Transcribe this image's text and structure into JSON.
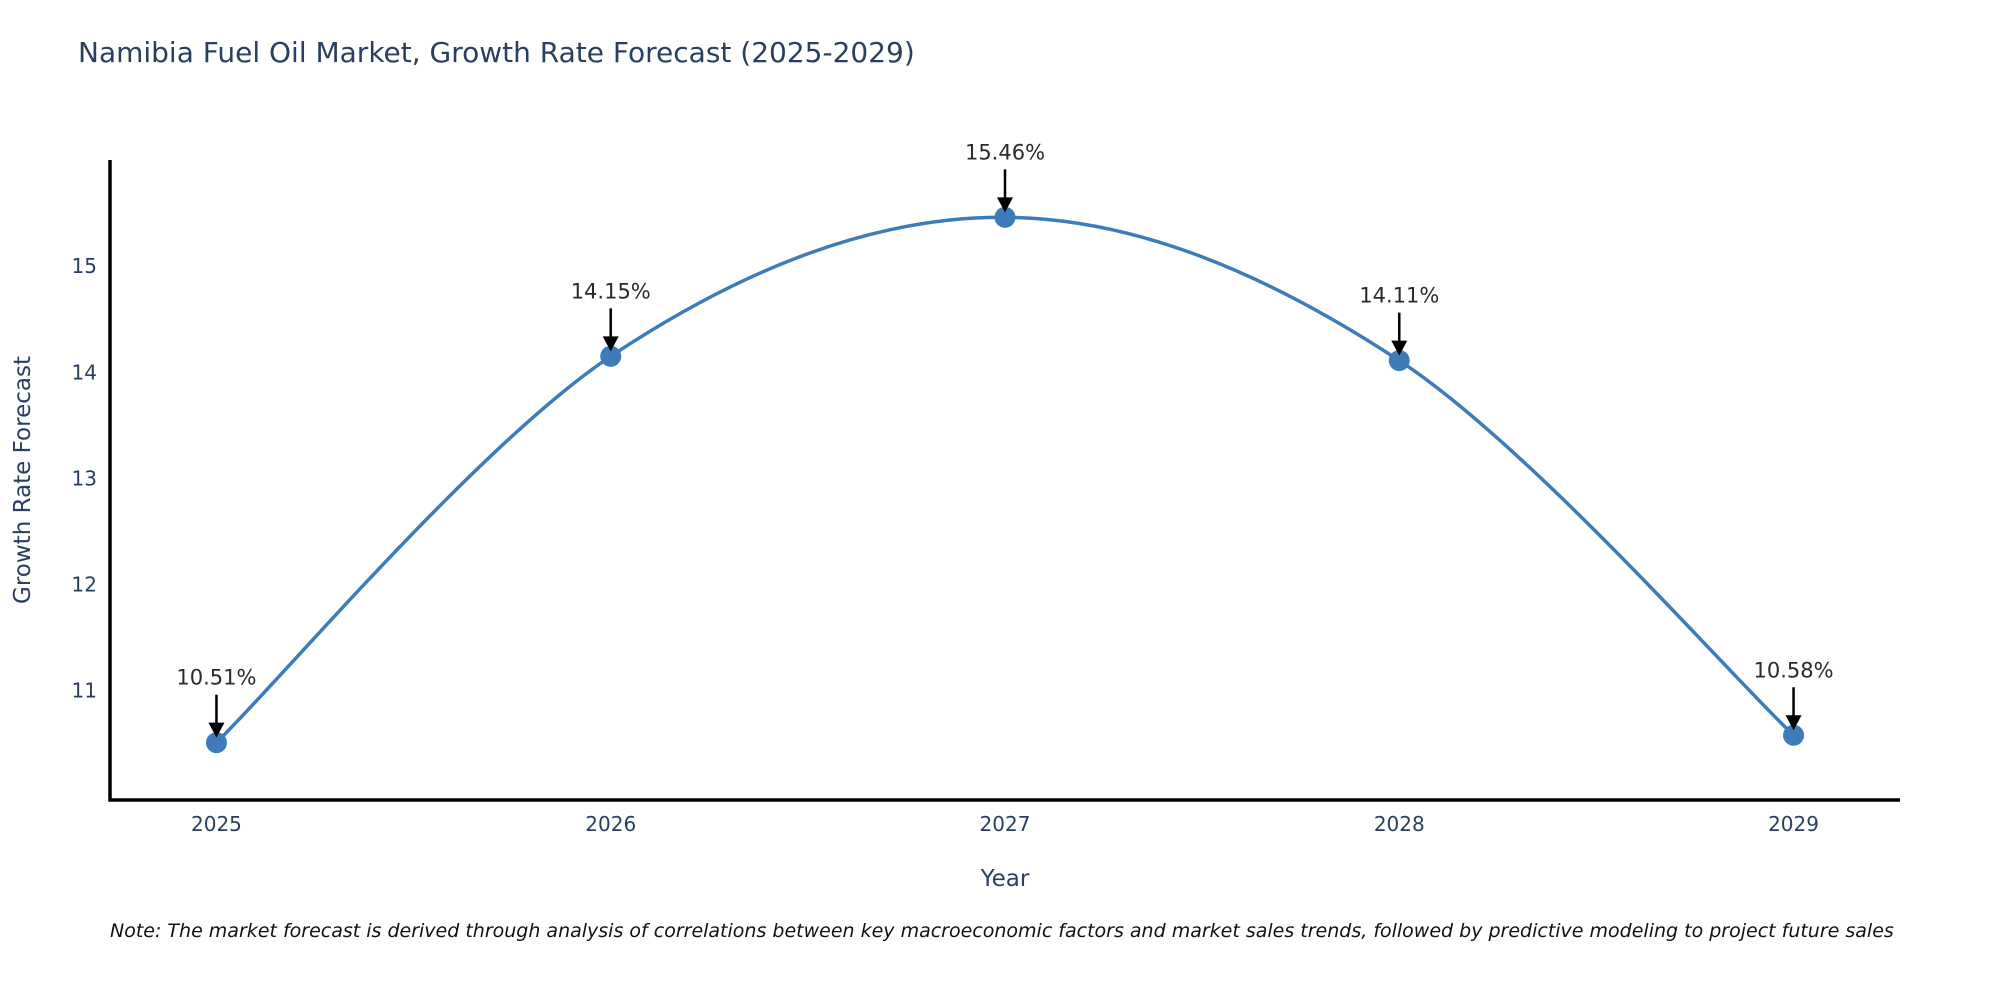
{
  "note": "Note: The market forecast is derived through analysis of correlations between key macroeconomic factors and market sales trends, followed by predictive modeling to project future sales",
  "colors": {
    "line": "#3d7cb8",
    "marker": "#3d7cb8",
    "axis": "#000000",
    "arrow": "#000000",
    "text": "#2a3f5f",
    "background": "#ffffff"
  },
  "chart_data": {
    "type": "line",
    "title": "Namibia Fuel Oil Market, Growth Rate Forecast (2025-2029)",
    "xlabel": "Year",
    "ylabel": "Growth Rate Forecast",
    "x": [
      2025,
      2026,
      2027,
      2028,
      2029
    ],
    "y": [
      10.51,
      14.15,
      15.46,
      14.11,
      10.58
    ],
    "point_labels": [
      "10.51%",
      "14.15%",
      "15.46%",
      "14.11%",
      "10.58%"
    ],
    "xtick_values": [
      2025,
      2026,
      2027,
      2028,
      2029
    ],
    "xtick_labels": [
      "2025",
      "2026",
      "2027",
      "2028",
      "2029"
    ],
    "ytick_values": [
      11,
      12,
      13,
      14,
      15
    ],
    "ytick_labels": [
      "11",
      "12",
      "13",
      "14",
      "15"
    ],
    "xlim": [
      2024.73,
      2029.27
    ],
    "ylim": [
      9.97,
      16.0
    ],
    "grid": false,
    "legend": false,
    "line_shape": "spline",
    "annotation_style": "black-down-arrow-above-point"
  }
}
